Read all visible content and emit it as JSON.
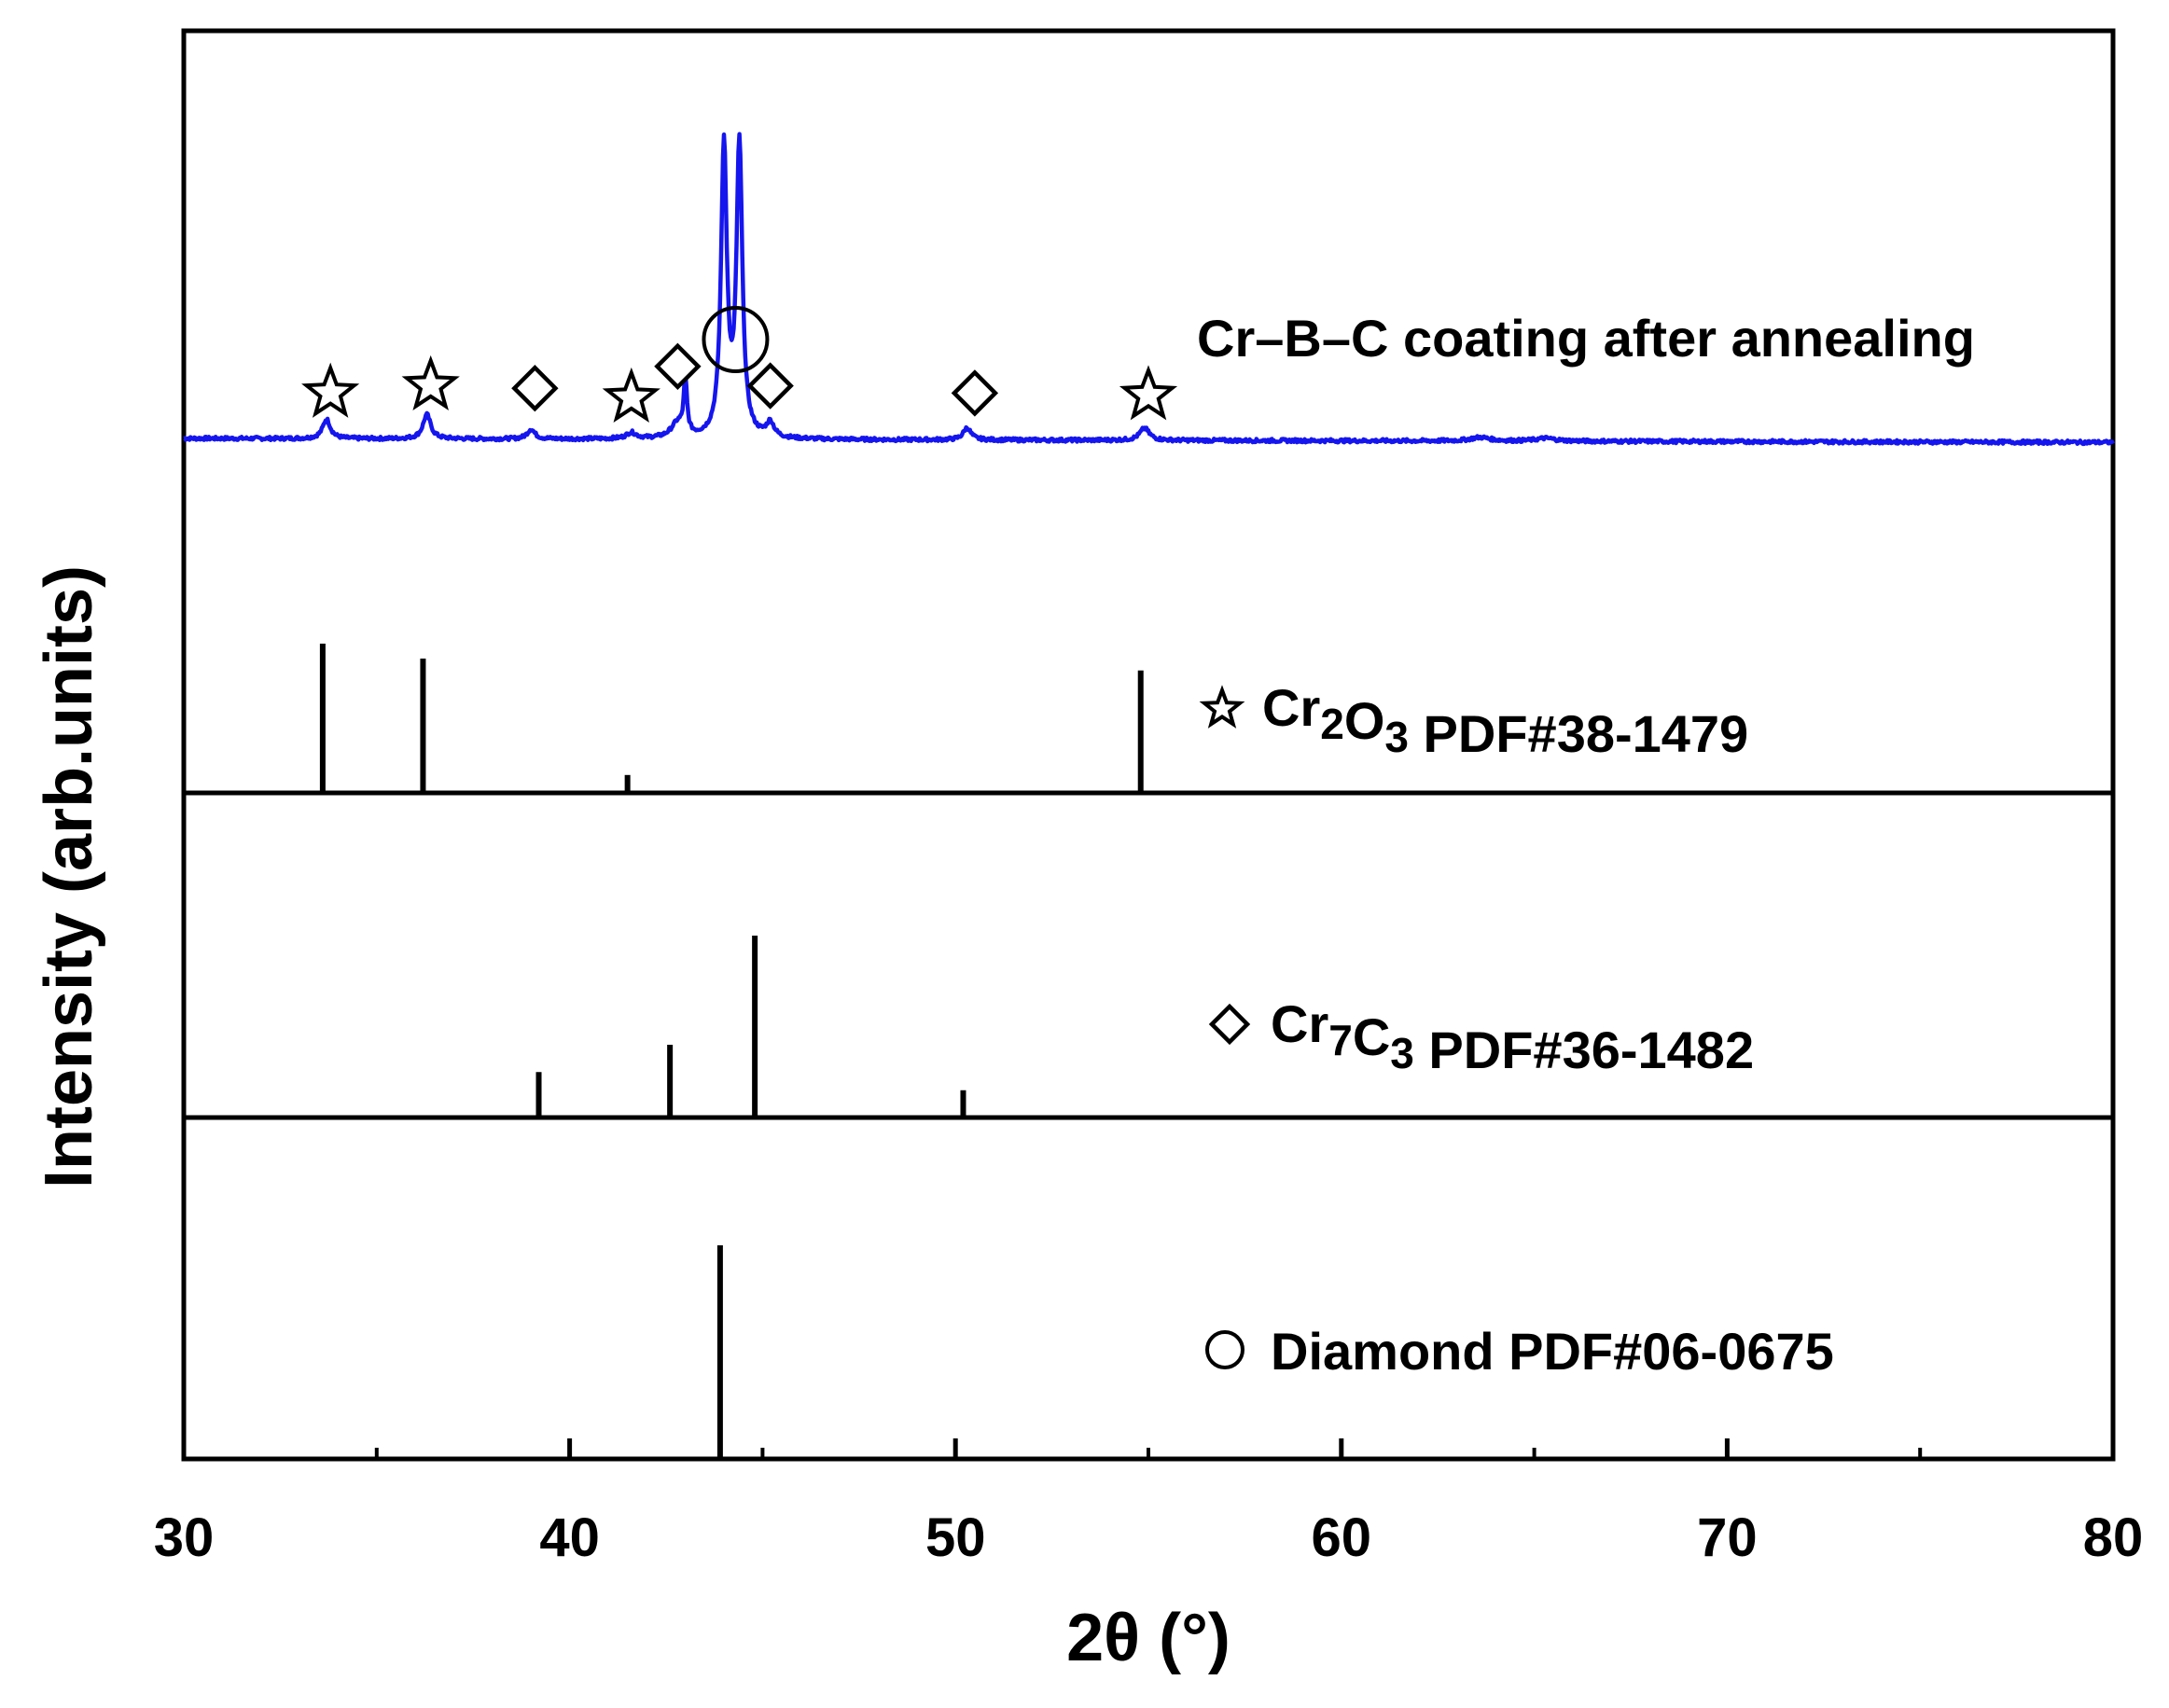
{
  "chart_data": {
    "type": "line",
    "xlabel": "2θ (°)",
    "ylabel": "Intensity (arb.units)",
    "xlim": [
      30,
      80
    ],
    "x_ticks": [
      30,
      40,
      50,
      60,
      70,
      80
    ],
    "x_minor_ticks": [
      35,
      45,
      55,
      65,
      75
    ],
    "grid": false,
    "series": [
      {
        "name": "Cr–B–C coating after annealing",
        "color": "#1515ee",
        "peaks": [
          {
            "x": 33.7,
            "h": 8,
            "w": 0.12
          },
          {
            "x": 36.3,
            "h": 10,
            "w": 0.12
          },
          {
            "x": 39.0,
            "h": 4,
            "w": 0.12
          },
          {
            "x": 41.6,
            "h": 2.5,
            "w": 0.15
          },
          {
            "x": 42.8,
            "h": 6,
            "w": 0.2
          },
          {
            "x": 43.0,
            "h": 22,
            "w": 0.05
          },
          {
            "x": 44.0,
            "h": 120,
            "w": 0.09
          },
          {
            "x": 44.4,
            "h": 120,
            "w": 0.09
          },
          {
            "x": 45.2,
            "h": 6,
            "w": 0.12
          },
          {
            "x": 50.3,
            "h": 5,
            "w": 0.12
          },
          {
            "x": 54.9,
            "h": 5,
            "w": 0.15
          },
          {
            "x": 63.6,
            "h": 1.5,
            "w": 0.3
          },
          {
            "x": 65.3,
            "h": 1.2,
            "w": 0.3
          }
        ],
        "ylim": [
          0,
          100
        ]
      }
    ],
    "phase_markers": [
      {
        "x": 33.8,
        "y": 11,
        "symbol": "star"
      },
      {
        "x": 36.4,
        "y": 14,
        "symbol": "star"
      },
      {
        "x": 39.1,
        "y": 13,
        "symbol": "diamond"
      },
      {
        "x": 41.6,
        "y": 9,
        "symbol": "star"
      },
      {
        "x": 42.8,
        "y": 22,
        "symbol": "diamond"
      },
      {
        "x": 45.2,
        "y": 14,
        "symbol": "diamond"
      },
      {
        "x": 50.5,
        "y": 11,
        "symbol": "diamond"
      },
      {
        "x": 55.0,
        "y": 10,
        "symbol": "star"
      },
      {
        "x": 44.3,
        "y": 60,
        "symbol": "circle"
      }
    ],
    "reference_patterns": [
      {
        "name": "Cr2O3 PDF#38-1479",
        "formula_main": "Cr",
        "formula_parts": [
          {
            "t": "Cr"
          },
          {
            "t": "2",
            "sub": true
          },
          {
            "t": "O"
          },
          {
            "t": "3",
            "sub": true
          }
        ],
        "suffix": " PDF#38-1479",
        "symbol": "star",
        "ylim": [
          0,
          100
        ],
        "lines": [
          {
            "x": 33.6,
            "y": 100
          },
          {
            "x": 36.2,
            "y": 90
          },
          {
            "x": 41.5,
            "y": 12
          },
          {
            "x": 54.8,
            "y": 82
          }
        ]
      },
      {
        "name": "Cr7C3 PDF#36-1482",
        "formula_parts": [
          {
            "t": "Cr"
          },
          {
            "t": "7",
            "sub": true
          },
          {
            "t": "C"
          },
          {
            "t": "3",
            "sub": true
          }
        ],
        "suffix": " PDF#36-1482",
        "symbol": "diamond",
        "ylim": [
          0,
          100
        ],
        "lines": [
          {
            "x": 39.2,
            "y": 25
          },
          {
            "x": 42.6,
            "y": 40
          },
          {
            "x": 44.8,
            "y": 100
          },
          {
            "x": 50.2,
            "y": 15
          }
        ]
      },
      {
        "name": "Diamond PDF#06-0675",
        "formula_parts": [
          {
            "t": "Diamond PDF#06-0675"
          }
        ],
        "suffix": "",
        "symbol": "circle",
        "ylim": [
          0,
          100
        ],
        "lines": [
          {
            "x": 43.9,
            "y": 100
          }
        ]
      }
    ]
  }
}
